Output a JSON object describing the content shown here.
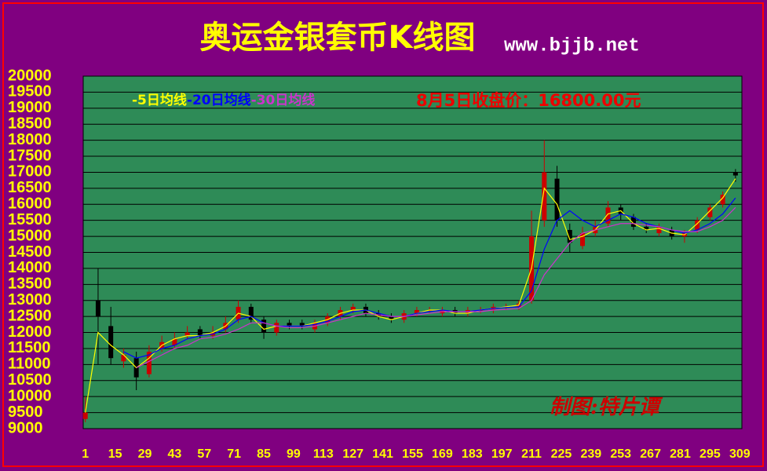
{
  "chart_data": {
    "type": "candlestick",
    "title": "奥运金银套币K线图",
    "source": "www.bjjb.net",
    "annotation": "8月5日收盘价：16800.00元",
    "credit": "制图:特片谭",
    "x": [
      1,
      7,
      13,
      19,
      25,
      31,
      37,
      43,
      49,
      55,
      61,
      67,
      73,
      79,
      85,
      91,
      97,
      103,
      109,
      115,
      121,
      127,
      133,
      139,
      145,
      151,
      157,
      163,
      169,
      175,
      181,
      187,
      193,
      199,
      205,
      211,
      217,
      223,
      229,
      235,
      241,
      247,
      253,
      259,
      265,
      271,
      277,
      283,
      289,
      295,
      301,
      307
    ],
    "open": [
      9300,
      13000,
      12200,
      11100,
      11200,
      10700,
      11500,
      11600,
      11900,
      12100,
      11900,
      12100,
      12400,
      12800,
      12400,
      12000,
      12300,
      12300,
      12100,
      12300,
      12500,
      12700,
      12800,
      12600,
      12500,
      12400,
      12600,
      12700,
      12600,
      12700,
      12600,
      12700,
      12700,
      12800,
      12800,
      13000,
      15500,
      16800,
      15200,
      14700,
      15100,
      15400,
      15900,
      15600,
      15300,
      15100,
      15200,
      15000,
      15200,
      15600,
      16000,
      17000
    ],
    "high": [
      10000,
      14000,
      12800,
      11500,
      11400,
      11600,
      11900,
      12000,
      12200,
      12200,
      12200,
      12500,
      13000,
      12900,
      12500,
      12400,
      12400,
      12400,
      12400,
      12600,
      12800,
      12900,
      12900,
      12700,
      12600,
      12700,
      12800,
      12800,
      12800,
      12800,
      12800,
      12800,
      12900,
      12900,
      13000,
      15800,
      18000,
      17200,
      15400,
      15300,
      15500,
      16100,
      16000,
      15700,
      15400,
      15400,
      15300,
      15200,
      15600,
      16000,
      16400,
      17100
    ],
    "low": [
      9200,
      11000,
      11000,
      10900,
      10200,
      10600,
      11400,
      11500,
      11800,
      11800,
      11800,
      12000,
      12300,
      12300,
      11800,
      11900,
      12100,
      12100,
      12000,
      12200,
      12400,
      12600,
      12500,
      12400,
      12300,
      12300,
      12500,
      12600,
      12500,
      12500,
      12500,
      12600,
      12600,
      12700,
      12700,
      12900,
      15300,
      15300,
      14500,
      14600,
      15000,
      15300,
      15500,
      15200,
      15100,
      15000,
      14900,
      14800,
      15100,
      15500,
      15900,
      16700
    ],
    "close": [
      9500,
      12500,
      11200,
      11300,
      10600,
      11400,
      11700,
      11800,
      12000,
      11900,
      12000,
      12300,
      12800,
      12400,
      12000,
      12300,
      12200,
      12200,
      12300,
      12500,
      12700,
      12800,
      12600,
      12500,
      12400,
      12600,
      12700,
      12700,
      12700,
      12600,
      12700,
      12700,
      12800,
      12800,
      12900,
      15000,
      17000,
      15500,
      14800,
      15100,
      15300,
      15900,
      15700,
      15300,
      15200,
      15300,
      15000,
      15100,
      15500,
      15900,
      16300,
      16900
    ],
    "up_color": "#cc0000",
    "down_color": "#000000",
    "series": [
      {
        "name": "-5日均线",
        "color": "#ffff00",
        "values": [
          9500,
          12000,
          11600,
          11300,
          10900,
          11200,
          11600,
          11800,
          11900,
          11900,
          12000,
          12200,
          12600,
          12500,
          12100,
          12200,
          12200,
          12200,
          12300,
          12400,
          12600,
          12700,
          12700,
          12500,
          12400,
          12500,
          12600,
          12700,
          12700,
          12600,
          12600,
          12700,
          12750,
          12800,
          12850,
          14000,
          16500,
          16000,
          14900,
          15000,
          15200,
          15700,
          15800,
          15400,
          15200,
          15250,
          15100,
          15050,
          15400,
          15800,
          16200,
          16800
        ]
      },
      {
        "name": "-20日均线",
        "color": "#0000ff",
        "values": [
          null,
          null,
          null,
          11400,
          11200,
          11300,
          11500,
          11600,
          11800,
          11900,
          11950,
          12100,
          12400,
          12500,
          12300,
          12200,
          12200,
          12200,
          12250,
          12350,
          12500,
          12650,
          12700,
          12600,
          12500,
          12500,
          12600,
          12650,
          12700,
          12650,
          12650,
          12700,
          12750,
          12780,
          12800,
          13300,
          14600,
          15500,
          15800,
          15500,
          15300,
          15500,
          15700,
          15600,
          15400,
          15300,
          15200,
          15100,
          15200,
          15400,
          15700,
          16200
        ]
      },
      {
        "name": "-30日均线",
        "color": "#cc33cc",
        "values": [
          null,
          null,
          null,
          null,
          10900,
          11100,
          11300,
          11500,
          11600,
          11800,
          11850,
          11950,
          12100,
          12300,
          12300,
          12200,
          12150,
          12150,
          12200,
          12300,
          12400,
          12500,
          12600,
          12550,
          12500,
          12500,
          12550,
          12600,
          12650,
          12650,
          12650,
          12650,
          12700,
          12720,
          12750,
          13000,
          13800,
          14300,
          14800,
          15100,
          15200,
          15300,
          15400,
          15400,
          15350,
          15300,
          15200,
          15150,
          15150,
          15300,
          15500,
          15900
        ]
      }
    ],
    "xlim": [
      0,
      310
    ],
    "xticks": [
      1,
      15,
      29,
      43,
      57,
      71,
      85,
      99,
      113,
      127,
      141,
      155,
      169,
      183,
      197,
      211,
      225,
      239,
      253,
      267,
      281,
      295,
      309
    ],
    "ylim": [
      9000,
      20000
    ],
    "yticks": [
      9000,
      9500,
      10000,
      10500,
      11000,
      11500,
      12000,
      12500,
      13000,
      13500,
      14000,
      14500,
      15000,
      15500,
      16000,
      16500,
      17000,
      17500,
      18000,
      18500,
      19000,
      19500,
      20000
    ],
    "grid": true
  }
}
